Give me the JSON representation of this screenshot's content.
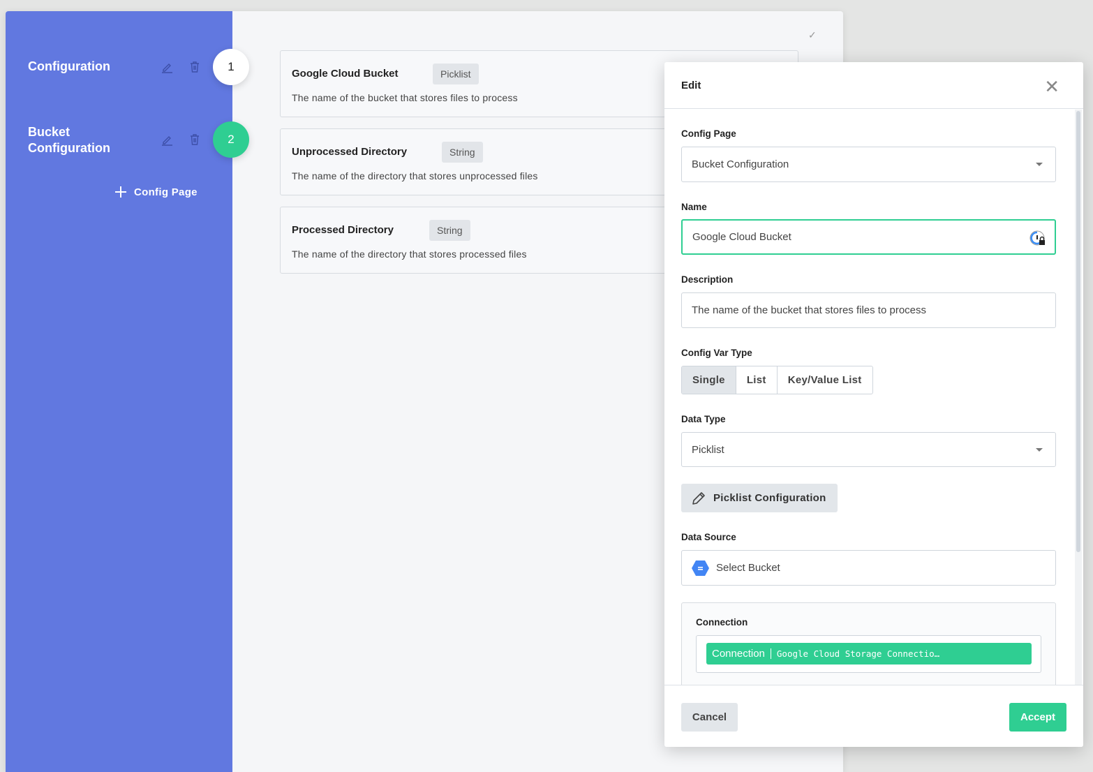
{
  "sidebar": {
    "pages": [
      {
        "label": "Configuration",
        "step": "1"
      },
      {
        "label": "Bucket Configuration",
        "step": "2"
      }
    ],
    "add_label": "Config Page",
    "accent": "#6178e0",
    "active_step_color": "#2fce92"
  },
  "cards": [
    {
      "title": "Google Cloud Bucket",
      "type": "Picklist",
      "description": "The name of the bucket that stores files to process"
    },
    {
      "title": "Unprocessed Directory",
      "type": "String",
      "description": "The name of the directory that stores unprocessed files"
    },
    {
      "title": "Processed Directory",
      "type": "String",
      "description": "The name of the directory that stores processed files"
    }
  ],
  "modal": {
    "title": "Edit",
    "config_page_label": "Config Page",
    "config_page_value": "Bucket Configuration",
    "name_label": "Name",
    "name_value": "Google Cloud Bucket",
    "description_label": "Description",
    "description_value": "The name of the bucket that stores files to process",
    "var_type_label": "Config Var Type",
    "var_types": [
      "Single",
      "List",
      "Key/Value List"
    ],
    "var_type_selected": "Single",
    "data_type_label": "Data Type",
    "data_type_value": "Picklist",
    "picklist_button": "Picklist Configuration",
    "data_source_label": "Data Source",
    "data_source_value": "Select Bucket",
    "connection_label": "Connection",
    "connection_chip_label": "Connection",
    "connection_chip_value": "Google Cloud Storage Connectio…",
    "cancel": "Cancel",
    "accept": "Accept"
  }
}
